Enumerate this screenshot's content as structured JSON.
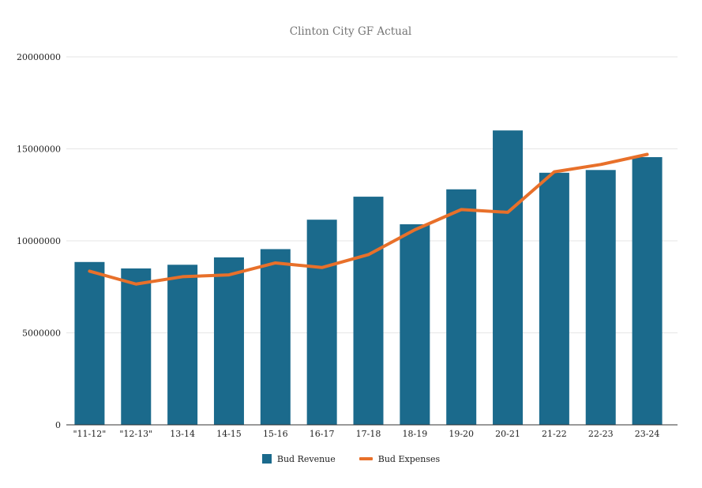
{
  "chart_data": {
    "type": "bar",
    "title": "Clinton City GF Actual",
    "categories": [
      "\"11-12\"",
      "\"12-13\"",
      "13-14",
      "14-15",
      "15-16",
      "16-17",
      "17-18",
      "18-19",
      "19-20",
      "20-21",
      "21-22",
      "22-23",
      "23-24"
    ],
    "series": [
      {
        "name": "Bud Revenue",
        "type": "bar",
        "color": "#1b6a8c",
        "values": [
          8850000,
          8500000,
          8700000,
          9100000,
          9550000,
          11150000,
          12400000,
          10900000,
          12800000,
          16000000,
          13700000,
          13850000,
          14550000
        ]
      },
      {
        "name": "Bud Expenses",
        "type": "line",
        "color": "#e8702a",
        "values": [
          8350000,
          7650000,
          8050000,
          8150000,
          8800000,
          8550000,
          9250000,
          10600000,
          11700000,
          11550000,
          13750000,
          14150000,
          14700000
        ]
      }
    ],
    "ylim": [
      0,
      20000000
    ],
    "yticks": [
      0,
      5000000,
      10000000,
      15000000,
      20000000
    ],
    "grid": true,
    "legend_position": "bottom",
    "colors": {
      "grid_line": "#e6e6e6",
      "axis_line": "#333333",
      "tick_label": "#222222",
      "title": "#757575",
      "background": "#ffffff"
    }
  }
}
